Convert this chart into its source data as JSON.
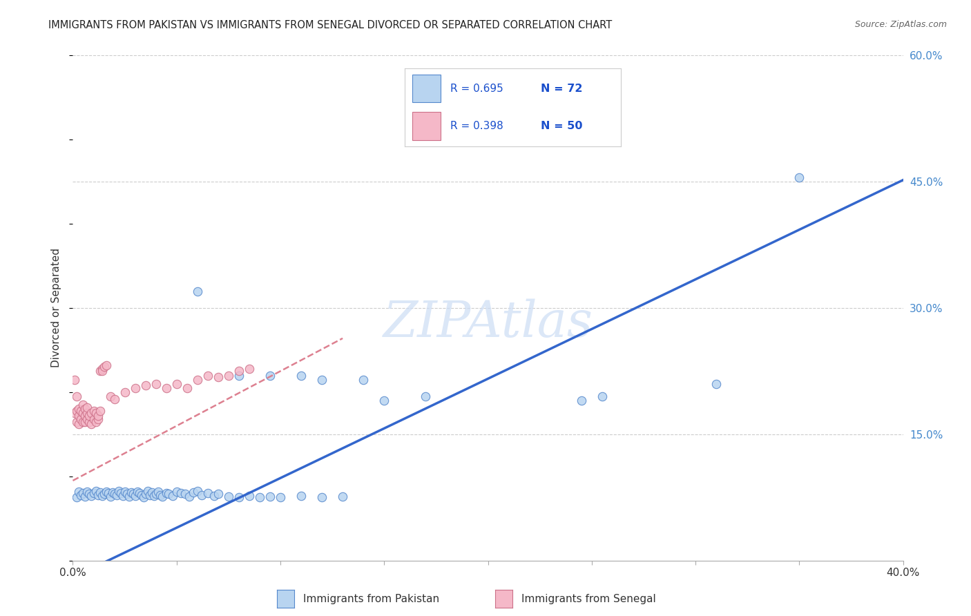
{
  "title": "IMMIGRANTS FROM PAKISTAN VS IMMIGRANTS FROM SENEGAL DIVORCED OR SEPARATED CORRELATION CHART",
  "source": "Source: ZipAtlas.com",
  "ylabel": "Divorced or Separated",
  "xlim": [
    0.0,
    0.4
  ],
  "ylim": [
    0.0,
    0.6
  ],
  "grid_yticks": [
    0.15,
    0.3,
    0.45,
    0.6
  ],
  "grid_yticklabels": [
    "15.0%",
    "30.0%",
    "45.0%",
    "60.0%"
  ],
  "pakistan_dot_color": "#b8d4f0",
  "senegal_dot_color": "#f5b8c8",
  "pakistan_edge_color": "#5588cc",
  "senegal_edge_color": "#cc7088",
  "pakistan_line_color": "#3366cc",
  "senegal_line_color": "#dd8090",
  "pakistan_line_intercept": -0.02,
  "pakistan_line_slope": 1.18,
  "senegal_line_intercept": 0.095,
  "senegal_line_slope": 1.3,
  "senegal_line_xmax": 0.13,
  "watermark_text": "ZIPAtlas",
  "watermark_color": "#ccddf5",
  "background_color": "#ffffff",
  "grid_color": "#cccccc",
  "pakistan_points": [
    [
      0.002,
      0.075
    ],
    [
      0.003,
      0.082
    ],
    [
      0.004,
      0.078
    ],
    [
      0.005,
      0.08
    ],
    [
      0.006,
      0.076
    ],
    [
      0.007,
      0.082
    ],
    [
      0.008,
      0.079
    ],
    [
      0.009,
      0.077
    ],
    [
      0.01,
      0.08
    ],
    [
      0.011,
      0.083
    ],
    [
      0.012,
      0.078
    ],
    [
      0.013,
      0.081
    ],
    [
      0.014,
      0.077
    ],
    [
      0.015,
      0.079
    ],
    [
      0.016,
      0.082
    ],
    [
      0.017,
      0.08
    ],
    [
      0.018,
      0.076
    ],
    [
      0.019,
      0.081
    ],
    [
      0.02,
      0.079
    ],
    [
      0.021,
      0.078
    ],
    [
      0.022,
      0.083
    ],
    [
      0.023,
      0.08
    ],
    [
      0.024,
      0.077
    ],
    [
      0.025,
      0.082
    ],
    [
      0.026,
      0.079
    ],
    [
      0.027,
      0.076
    ],
    [
      0.028,
      0.081
    ],
    [
      0.029,
      0.079
    ],
    [
      0.03,
      0.077
    ],
    [
      0.031,
      0.082
    ],
    [
      0.032,
      0.08
    ],
    [
      0.033,
      0.078
    ],
    [
      0.034,
      0.075
    ],
    [
      0.035,
      0.079
    ],
    [
      0.036,
      0.083
    ],
    [
      0.037,
      0.078
    ],
    [
      0.038,
      0.081
    ],
    [
      0.039,
      0.077
    ],
    [
      0.04,
      0.079
    ],
    [
      0.041,
      0.082
    ],
    [
      0.042,
      0.078
    ],
    [
      0.043,
      0.076
    ],
    [
      0.045,
      0.08
    ],
    [
      0.046,
      0.079
    ],
    [
      0.048,
      0.077
    ],
    [
      0.05,
      0.082
    ],
    [
      0.052,
      0.08
    ],
    [
      0.054,
      0.079
    ],
    [
      0.056,
      0.076
    ],
    [
      0.058,
      0.081
    ],
    [
      0.06,
      0.083
    ],
    [
      0.062,
      0.078
    ],
    [
      0.065,
      0.08
    ],
    [
      0.068,
      0.077
    ],
    [
      0.07,
      0.079
    ],
    [
      0.075,
      0.076
    ],
    [
      0.08,
      0.075
    ],
    [
      0.085,
      0.077
    ],
    [
      0.09,
      0.075
    ],
    [
      0.095,
      0.076
    ],
    [
      0.1,
      0.075
    ],
    [
      0.11,
      0.077
    ],
    [
      0.12,
      0.075
    ],
    [
      0.13,
      0.076
    ],
    [
      0.06,
      0.32
    ],
    [
      0.08,
      0.22
    ],
    [
      0.095,
      0.22
    ],
    [
      0.11,
      0.22
    ],
    [
      0.12,
      0.215
    ],
    [
      0.14,
      0.215
    ],
    [
      0.15,
      0.19
    ],
    [
      0.17,
      0.195
    ],
    [
      0.245,
      0.19
    ],
    [
      0.255,
      0.195
    ],
    [
      0.31,
      0.21
    ],
    [
      0.35,
      0.455
    ]
  ],
  "senegal_points": [
    [
      0.001,
      0.175
    ],
    [
      0.002,
      0.165
    ],
    [
      0.002,
      0.178
    ],
    [
      0.002,
      0.195
    ],
    [
      0.003,
      0.162
    ],
    [
      0.003,
      0.172
    ],
    [
      0.003,
      0.18
    ],
    [
      0.004,
      0.168
    ],
    [
      0.004,
      0.178
    ],
    [
      0.005,
      0.165
    ],
    [
      0.005,
      0.175
    ],
    [
      0.005,
      0.185
    ],
    [
      0.006,
      0.165
    ],
    [
      0.006,
      0.172
    ],
    [
      0.006,
      0.18
    ],
    [
      0.007,
      0.168
    ],
    [
      0.007,
      0.175
    ],
    [
      0.007,
      0.182
    ],
    [
      0.008,
      0.165
    ],
    [
      0.008,
      0.172
    ],
    [
      0.009,
      0.162
    ],
    [
      0.009,
      0.175
    ],
    [
      0.01,
      0.168
    ],
    [
      0.01,
      0.178
    ],
    [
      0.011,
      0.165
    ],
    [
      0.011,
      0.175
    ],
    [
      0.012,
      0.168
    ],
    [
      0.012,
      0.172
    ],
    [
      0.013,
      0.225
    ],
    [
      0.013,
      0.178
    ],
    [
      0.014,
      0.228
    ],
    [
      0.014,
      0.225
    ],
    [
      0.015,
      0.23
    ],
    [
      0.016,
      0.232
    ],
    [
      0.018,
      0.195
    ],
    [
      0.02,
      0.192
    ],
    [
      0.025,
      0.2
    ],
    [
      0.03,
      0.205
    ],
    [
      0.035,
      0.208
    ],
    [
      0.04,
      0.21
    ],
    [
      0.045,
      0.205
    ],
    [
      0.05,
      0.21
    ],
    [
      0.055,
      0.205
    ],
    [
      0.06,
      0.215
    ],
    [
      0.065,
      0.22
    ],
    [
      0.07,
      0.218
    ],
    [
      0.075,
      0.22
    ],
    [
      0.08,
      0.225
    ],
    [
      0.085,
      0.228
    ],
    [
      0.001,
      0.215
    ]
  ]
}
